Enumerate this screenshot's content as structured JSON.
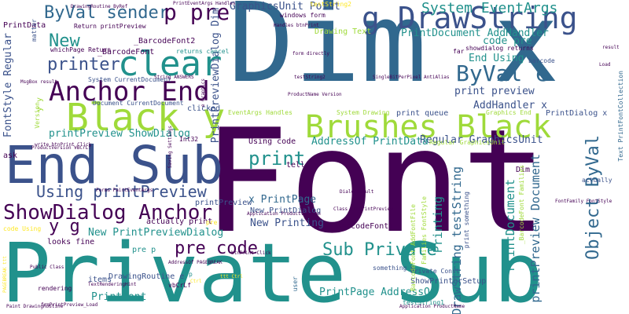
{
  "words": [
    {
      "text": "Private Sub",
      "color": "#21918c"
    },
    {
      "text": "Font",
      "color": "#440154"
    },
    {
      "text": "Dim x",
      "color": "#31688e"
    },
    {
      "text": "End Sub",
      "color": "#3b528b"
    },
    {
      "text": "g DrawString",
      "color": "#3b528b"
    },
    {
      "text": "Brushes Black",
      "color": "#9fda3a"
    },
    {
      "text": "Black y",
      "color": "#9fda3a"
    },
    {
      "text": "clear",
      "color": "#21918c"
    },
    {
      "text": "Anchor End",
      "color": "#440154"
    },
    {
      "text": "ShowDialog Anchor",
      "color": "#440154"
    },
    {
      "text": "Using printPreview",
      "color": "#3b528b"
    },
    {
      "text": "ByVal sender",
      "color": "#31688e"
    },
    {
      "text": "p pre",
      "color": "#440154"
    },
    {
      "text": "ByVal e",
      "color": "#31688e"
    },
    {
      "text": "printer",
      "color": "#3b528b"
    },
    {
      "text": "New",
      "color": "#21918c"
    },
    {
      "text": "Sub Private",
      "color": "#21918c"
    },
    {
      "text": "pre code",
      "color": "#440154"
    },
    {
      "text": "Object ByVal",
      "color": "#31688e"
    },
    {
      "text": "print",
      "color": "#21918c"
    },
    {
      "text": "y g",
      "color": "#440154"
    },
    {
      "text": "System EventArgs",
      "color": "#21918c"
    },
    {
      "text": "GraphicsUnit Point",
      "color": "#3b528b"
    },
    {
      "text": "PrintDocument AddHandler",
      "color": "#21918c"
    },
    {
      "text": "code pre",
      "color": "#21918c"
    },
    {
      "text": "End Using",
      "color": "#21918c"
    },
    {
      "text": "print preview",
      "color": "#3b528b"
    },
    {
      "text": "AddHandler x",
      "color": "#3b528b"
    },
    {
      "text": "PrintDialog x",
      "color": "#3b528b"
    },
    {
      "text": "Regular GraphicsUnit",
      "color": "#3b528b"
    },
    {
      "text": "AddressOf PrintData",
      "color": "#21918c"
    },
    {
      "text": "print queue",
      "color": "#3b528b"
    },
    {
      "text": "printPreview ShowDialog",
      "color": "#21918c"
    },
    {
      "text": "New PrintPreviewDialog",
      "color": "#21918c"
    },
    {
      "text": "x PrintPage",
      "color": "#31688e"
    },
    {
      "text": "New PrintDialog",
      "color": "#3b528b"
    },
    {
      "text": "New Printing",
      "color": "#3b528b"
    },
    {
      "text": "actually print",
      "color": "#440154"
    },
    {
      "text": "_BarcodeFont1",
      "color": "#440154"
    },
    {
      "text": "_BarcodeFont2",
      "color": "#440154"
    },
    {
      "text": "_BarcodeFont",
      "color": "#440154"
    },
    {
      "text": "PrintData",
      "color": "#440154"
    },
    {
      "text": "PrintPreviewDialog Dim",
      "color": "#3b528b"
    },
    {
      "text": "Return printPreview",
      "color": "#440154"
    },
    {
      "text": "whichPage Return",
      "color": "#440154"
    },
    {
      "text": "Drawing Text",
      "color": "#9fda3a"
    },
    {
      "text": "windows form",
      "color": "#440154"
    },
    {
      "text": "showdialog returns",
      "color": "#440154"
    },
    {
      "text": "returns cancel",
      "color": "#21918c"
    },
    {
      "text": "PrintFont",
      "color": "#21918c"
    },
    {
      "text": "PrintPage AddressOf",
      "color": "#21918c"
    },
    {
      "text": "ShowPrinterSetup",
      "color": "#3b528b"
    },
    {
      "text": "Private Const",
      "color": "#3b528b"
    },
    {
      "text": "something p",
      "color": "#3b528b"
    },
    {
      "text": "testString1",
      "color": "#21918c"
    },
    {
      "text": "printPreview Document",
      "color": "#31688e"
    },
    {
      "text": "PrintDocument",
      "color": "#21918c"
    },
    {
      "text": "Printing",
      "color": "#21918c"
    },
    {
      "text": "DrawString testString",
      "color": "#31688e"
    },
    {
      "text": "print something",
      "color": "#3b528b"
    },
    {
      "text": "Using code",
      "color": "#440154"
    },
    {
      "text": "DrawingRoutine e",
      "color": "#3b528b"
    },
    {
      "text": "items",
      "color": "#3b528b"
    },
    {
      "text": "pre p",
      "color": "#21918c"
    },
    {
      "text": "looks fine",
      "color": "#440154"
    },
    {
      "text": "Document CurrentDocument",
      "color": "#3b528b"
    },
    {
      "text": "System CurrentDocument",
      "color": "#3b528b"
    },
    {
      "text": "clicked",
      "color": "#3b528b"
    },
    {
      "text": "FontStyle Regular",
      "color": "#3b528b"
    },
    {
      "text": "matter",
      "color": "#3b528b"
    },
    {
      "text": "ask",
      "color": "#440154"
    },
    {
      "text": "tell",
      "color": "#440154"
    },
    {
      "text": "Dim",
      "color": "#440154"
    },
    {
      "text": "far",
      "color": "#440154"
    },
    {
      "text": "barcode",
      "color": "#3b528b"
    },
    {
      "text": "Graphics End",
      "color": "#9fda3a"
    },
    {
      "text": "EventArgs Handles",
      "color": "#9fda3a"
    },
    {
      "text": "Regular GraphicsUnit",
      "color": "#9fda3a"
    },
    {
      "text": "code Using",
      "color": "#fde725"
    },
    {
      "text": "user",
      "color": "#31688e"
    },
    {
      "text": "actually",
      "color": "#3b528b"
    },
    {
      "text": "Text PrintFontCollection",
      "color": "#31688e"
    },
    {
      "text": "Families FontStyle",
      "color": "#9fda3a"
    },
    {
      "text": "_BarcodeFont Families",
      "color": "#9fda3a"
    },
    {
      "text": "_BarcodeFont AddFontFile",
      "color": "#9fda3a"
    },
    {
      "text": "System Drawing",
      "color": "#9fda3a"
    },
    {
      "text": "Version",
      "color": "#9fda3a"
    },
    {
      "text": "y y",
      "color": "#9fda3a"
    },
    {
      "text": "printPreview",
      "color": "#3b528b"
    },
    {
      "text": "pre",
      "color": "#fde725"
    },
    {
      "text": "p",
      "color": "#21918c"
    },
    {
      "text": "rendering",
      "color": "#440154"
    },
    {
      "text": "vbCrLf",
      "color": "#440154"
    },
    {
      "text": "Int32",
      "color": "#440154"
    },
    {
      "text": "testString2",
      "color": "#fde725"
    },
    {
      "text": "DrawingRoutine ByRef",
      "color": "#440154"
    },
    {
      "text": "PrintEventArgs Handles",
      "color": "#440154"
    },
    {
      "text": "Handles btnPrint",
      "color": "#440154"
    },
    {
      "text": "form directly",
      "color": "#440154"
    },
    {
      "text": "String ANSWERS",
      "color": "#440154"
    },
    {
      "text": "ProductName Version",
      "color": "#440154"
    },
    {
      "text": "testString2",
      "color": "#440154"
    },
    {
      "text": "Application ProductVersion",
      "color": "#440154"
    },
    {
      "text": "Class frmPrintPreview",
      "color": "#440154"
    },
    {
      "text": "DialogResult",
      "color": "#440154"
    },
    {
      "text": "FontFamily FontStyle",
      "color": "#440154"
    },
    {
      "text": "btnPrint Click",
      "color": "#440154"
    },
    {
      "text": "frmPrintPreview_Load",
      "color": "#440154"
    },
    {
      "text": "Public Class",
      "color": "#440154"
    },
    {
      "text": "Paint DrawingRoutine",
      "color": "#440154"
    },
    {
      "text": "Application ProductName",
      "color": "#440154"
    },
    {
      "text": "Load",
      "color": "#440154"
    },
    {
      "text": "Forms PaintEventArgs",
      "color": "#440154"
    },
    {
      "text": "AddressOf PAGEBREAK",
      "color": "#440154"
    },
    {
      "text": "TextRenderingHint",
      "color": "#440154"
    },
    {
      "text": "MsgBox result",
      "color": "#440154"
    },
    {
      "text": "write btnPrint_Click",
      "color": "#440154"
    },
    {
      "text": "ProductVersion VBCrLf",
      "color": "#440154"
    },
    {
      "text": "e Graphics",
      "color": "#440154"
    },
    {
      "text": "Saving Settings",
      "color": "#440154"
    },
    {
      "text": "SingleBitPerPixel AntiAlias",
      "color": "#440154"
    },
    {
      "text": "result",
      "color": "#440154"
    },
    {
      "text": "PAGEBREAK ttt",
      "color": "#fde725"
    },
    {
      "text": "ttt Ctrl",
      "color": "#fde725"
    },
    {
      "text": "Ctrl",
      "color": "#fde725"
    }
  ]
}
